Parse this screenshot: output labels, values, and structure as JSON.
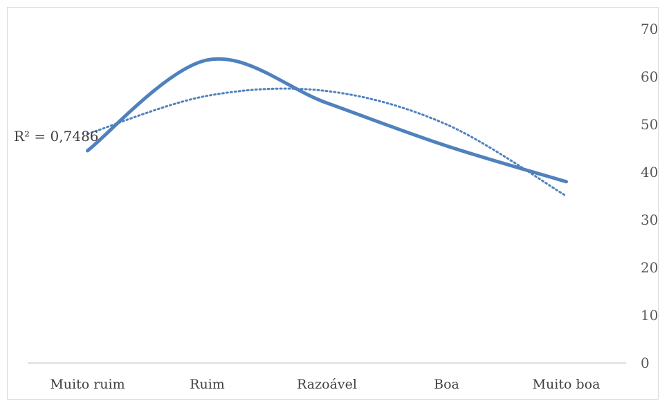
{
  "chart_data": {
    "type": "line",
    "title": "",
    "xlabel": "",
    "ylabel": "",
    "categories": [
      "Muito ruim",
      "Ruim",
      "Razoável",
      "Boa",
      "Muito boa"
    ],
    "series": [
      {
        "values": [
          44.5,
          63.5,
          54.5,
          45.5,
          38
        ],
        "color": "#4f81bd",
        "smooth": true
      }
    ],
    "trendline": {
      "type": "polynomial",
      "order": 2,
      "style": "dotted",
      "color": "#4f81bd",
      "values": [
        48,
        56,
        57,
        50,
        35
      ],
      "r2_text": "R² = 0,7486"
    },
    "ylim": [
      0,
      70
    ],
    "yticks": [
      0,
      10,
      20,
      30,
      40,
      50,
      60,
      70
    ],
    "y_axis_side": "right",
    "grid": false,
    "legend": "none"
  }
}
